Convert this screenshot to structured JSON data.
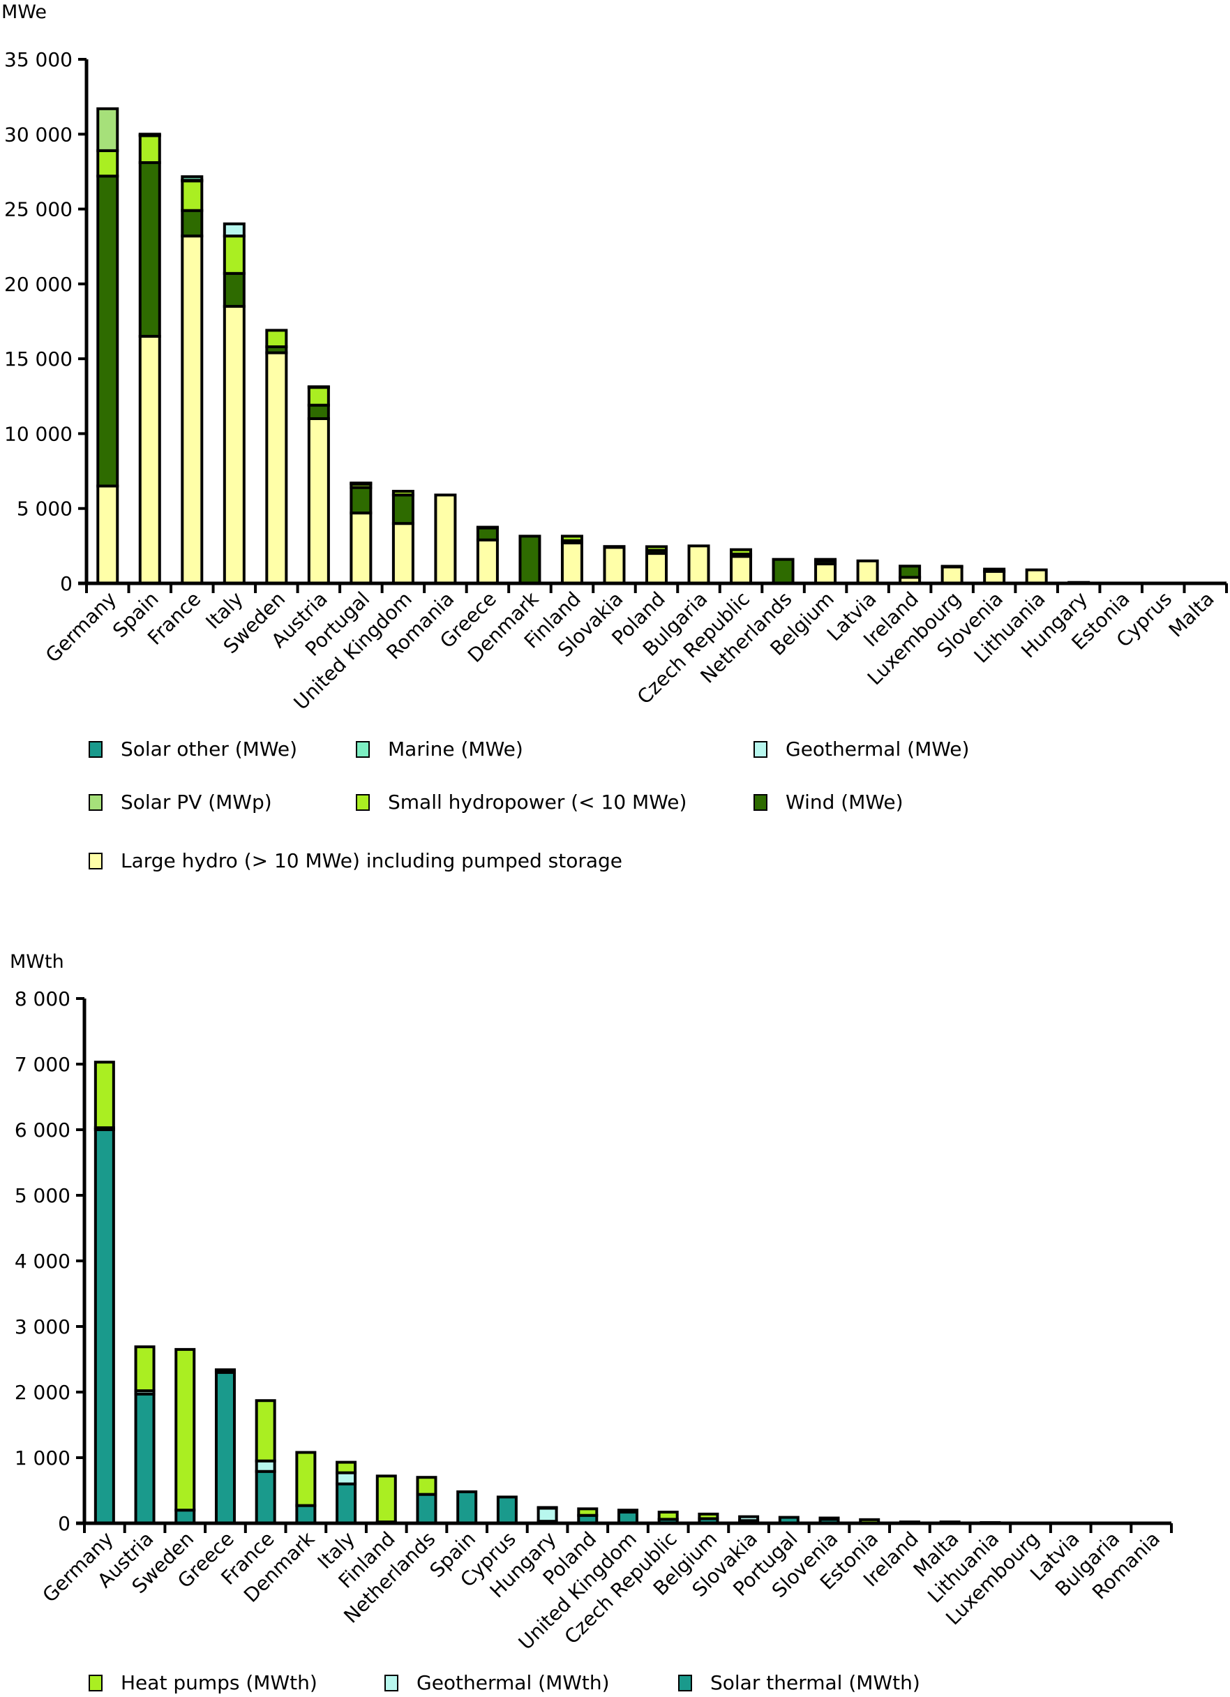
{
  "chart_data": [
    {
      "type": "bar",
      "stacked": true,
      "ylabel": "MWe",
      "ylim": [
        0,
        35000
      ],
      "yticks": [
        0,
        5000,
        10000,
        15000,
        20000,
        25000,
        30000,
        35000
      ],
      "ytick_labels": [
        "0",
        "5 000",
        "10 000",
        "15 000",
        "20 000",
        "25 000",
        "30 000",
        "35 000"
      ],
      "grid": false,
      "legend_position": "bottom",
      "categories": [
        "Germany",
        "Spain",
        "France",
        "Italy",
        "Sweden",
        "Austria",
        "Portugal",
        "United Kingdom",
        "Romania",
        "Greece",
        "Denmark",
        "Finland",
        "Slovakia",
        "Poland",
        "Bulgaria",
        "Czech Republic",
        "Netherlands",
        "Belgium",
        "Latvia",
        "Ireland",
        "Luxembourg",
        "Slovenia",
        "Lithuania",
        "Hungary",
        "Estonia",
        "Cyprus",
        "Malta"
      ],
      "series": [
        {
          "name": "Large hydro (> 10 MWe) including pumped storage",
          "color": "#ffffa8",
          "values": [
            6500,
            16500,
            23200,
            18500,
            15400,
            11000,
            4700,
            4000,
            5900,
            2900,
            0,
            2700,
            2400,
            2000,
            2500,
            1800,
            0,
            1300,
            1500,
            400,
            1100,
            800,
            900,
            0,
            0,
            0,
            0
          ]
        },
        {
          "name": "Wind (MWe)",
          "color": "#2e6b00",
          "values": [
            20700,
            11600,
            1700,
            2200,
            400,
            900,
            1700,
            1900,
            0,
            800,
            3150,
            150,
            0,
            200,
            0,
            150,
            1600,
            200,
            0,
            750,
            40,
            0,
            0,
            60,
            0,
            0,
            0
          ]
        },
        {
          "name": "Small hydropower (< 10 MWe)",
          "color": "#aaee22",
          "values": [
            1700,
            1800,
            2000,
            2500,
            1100,
            1200,
            250,
            250,
            0,
            50,
            0,
            300,
            60,
            250,
            0,
            300,
            0,
            100,
            0,
            0,
            0,
            150,
            0,
            0,
            0,
            0,
            0
          ]
        },
        {
          "name": "Solar PV (MWp)",
          "color": "#a6e07a",
          "values": [
            2800,
            50,
            0,
            0,
            0,
            30,
            20,
            0,
            0,
            0,
            0,
            0,
            0,
            0,
            0,
            0,
            0,
            0,
            0,
            0,
            0,
            0,
            0,
            0,
            0,
            0,
            0
          ]
        },
        {
          "name": "Geothermal (MWe)",
          "color": "#b8f7ee",
          "values": [
            0,
            0,
            20,
            810,
            0,
            0,
            30,
            0,
            0,
            0,
            0,
            0,
            0,
            0,
            0,
            0,
            0,
            0,
            0,
            0,
            0,
            0,
            0,
            0,
            0,
            0,
            0
          ]
        },
        {
          "name": "Marine (MWe)",
          "color": "#7deec2",
          "values": [
            0,
            0,
            240,
            0,
            0,
            0,
            0,
            0,
            0,
            0,
            0,
            0,
            0,
            0,
            0,
            0,
            0,
            0,
            0,
            0,
            0,
            0,
            0,
            0,
            0,
            0,
            0
          ]
        },
        {
          "name": "Solar other (MWe)",
          "color": "#1a9a8c",
          "values": [
            0,
            50,
            0,
            0,
            0,
            0,
            0,
            0,
            0,
            0,
            0,
            0,
            0,
            0,
            0,
            0,
            0,
            0,
            0,
            0,
            0,
            0,
            0,
            0,
            0,
            0,
            0
          ]
        }
      ],
      "legend": [
        {
          "label": "Solar other (MWe)",
          "color": "#1a9a8c"
        },
        {
          "label": "Marine (MWe)",
          "color": "#7deec2"
        },
        {
          "label": "Geothermal (MWe)",
          "color": "#b8f7ee"
        },
        {
          "label": "Solar PV (MWp)",
          "color": "#a6e07a"
        },
        {
          "label": "Small hydropower (< 10 MWe)",
          "color": "#aaee22"
        },
        {
          "label": "Wind (MWe)",
          "color": "#2e6b00"
        },
        {
          "label": "Large hydro (> 10 MWe) including pumped storage",
          "color": "#ffffa8"
        }
      ]
    },
    {
      "type": "bar",
      "stacked": true,
      "ylabel": "MWth",
      "ylim": [
        0,
        8000
      ],
      "yticks": [
        0,
        1000,
        2000,
        3000,
        4000,
        5000,
        6000,
        7000,
        8000
      ],
      "ytick_labels": [
        "0",
        "1 000",
        "2 000",
        "3 000",
        "4 000",
        "5 000",
        "6 000",
        "7 000",
        "8 000"
      ],
      "grid": false,
      "legend_position": "bottom",
      "categories": [
        "Germany",
        "Austria",
        "Sweden",
        "Greece",
        "France",
        "Denmark",
        "Italy",
        "Finland",
        "Netherlands",
        "Spain",
        "Cyprus",
        "Hungary",
        "Poland",
        "United Kingdom",
        "Czech Republic",
        "Belgium",
        "Slovakia",
        "Portugal",
        "Slovenia",
        "Estonia",
        "Ireland",
        "Malta",
        "Lithuania",
        "Luxembourg",
        "Latvia",
        "Bulgaria",
        "Romania"
      ],
      "series": [
        {
          "name": "Solar thermal (MWth)",
          "color": "#1a9a8c",
          "values": [
            6000,
            1970,
            200,
            2300,
            790,
            270,
            600,
            20,
            440,
            480,
            400,
            30,
            120,
            170,
            60,
            70,
            40,
            90,
            60,
            5,
            20,
            20,
            10,
            0,
            0,
            0,
            0
          ]
        },
        {
          "name": "Geothermal (MWth)",
          "color": "#b8f7ee",
          "values": [
            30,
            50,
            0,
            30,
            160,
            0,
            170,
            0,
            0,
            0,
            0,
            200,
            0,
            0,
            0,
            0,
            60,
            0,
            20,
            0,
            0,
            0,
            0,
            0,
            0,
            0,
            0
          ]
        },
        {
          "name": "Heat pumps (MWth)",
          "color": "#aaee22",
          "values": [
            1000,
            670,
            2450,
            10,
            920,
            810,
            160,
            700,
            260,
            0,
            0,
            10,
            100,
            30,
            110,
            70,
            0,
            0,
            0,
            50,
            0,
            0,
            0,
            0,
            0,
            0,
            0
          ]
        }
      ],
      "legend": [
        {
          "label": "Heat pumps (MWth)",
          "color": "#aaee22"
        },
        {
          "label": "Geothermal (MWth)",
          "color": "#b8f7ee"
        },
        {
          "label": "Solar thermal (MWth)",
          "color": "#1a9a8c"
        }
      ]
    }
  ]
}
